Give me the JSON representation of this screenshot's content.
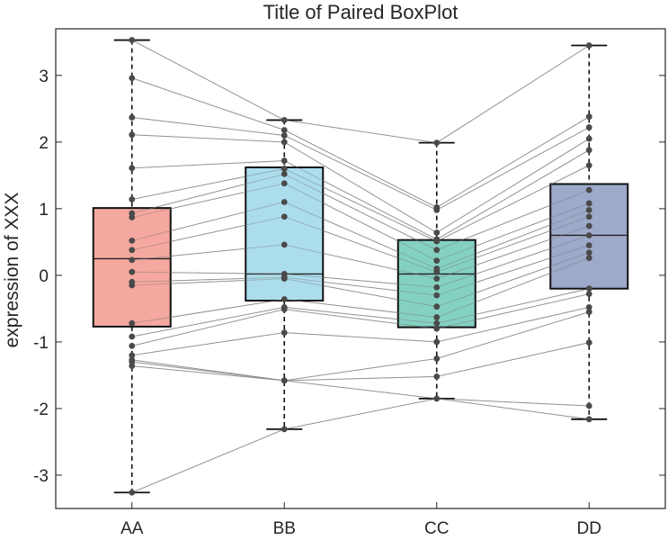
{
  "chart_data": {
    "type": "boxplot",
    "title": "Title of Paired BoxPlot",
    "xlabel": "",
    "ylabel": "expression of XXX",
    "ylim": [
      -3.5,
      3.7
    ],
    "yticks": [
      -3,
      -2,
      -1,
      0,
      1,
      2,
      3
    ],
    "ytick_labels": [
      "-3",
      "-2",
      "-1",
      "0",
      "1",
      "2",
      "3"
    ],
    "grid": false,
    "categories": [
      "AA",
      "BB",
      "CC",
      "DD"
    ],
    "colors": [
      "#F4A39A",
      "#A8DBEC",
      "#7ECFBE",
      "#98A5C7"
    ],
    "boxes": [
      {
        "category": "AA",
        "whisker_low": -3.26,
        "q1": -0.77,
        "median": 0.25,
        "q3": 1.01,
        "whisker_high": 3.53
      },
      {
        "category": "BB",
        "whisker_low": -2.31,
        "q1": -0.38,
        "median": 0.02,
        "q3": 1.62,
        "whisker_high": 2.33
      },
      {
        "category": "CC",
        "whisker_low": -1.85,
        "q1": -0.78,
        "median": 0.02,
        "q3": 0.53,
        "whisker_high": 1.99
      },
      {
        "category": "DD",
        "whisker_low": -2.16,
        "q1": -0.2,
        "median": 0.6,
        "q3": 1.37,
        "whisker_high": 3.45
      }
    ],
    "paired_points": [
      [
        3.53,
        2.33,
        1.99,
        3.45
      ],
      [
        2.96,
        2.18,
        1.02,
        2.38
      ],
      [
        2.37,
        2.1,
        0.98,
        2.22
      ],
      [
        2.11,
        2.0,
        0.64,
        2.05
      ],
      [
        1.61,
        1.72,
        0.54,
        1.88
      ],
      [
        1.14,
        1.6,
        0.51,
        1.65
      ],
      [
        0.93,
        1.52,
        0.38,
        1.28
      ],
      [
        0.87,
        1.38,
        0.22,
        1.08
      ],
      [
        0.52,
        1.1,
        0.1,
        0.98
      ],
      [
        0.38,
        0.88,
        0.05,
        0.88
      ],
      [
        0.23,
        0.46,
        -0.05,
        0.74
      ],
      [
        0.05,
        0.02,
        -0.18,
        0.6
      ],
      [
        -0.1,
        -0.03,
        -0.3,
        0.45
      ],
      [
        -0.15,
        -0.05,
        -0.47,
        0.34
      ],
      [
        -0.72,
        -0.36,
        -0.63,
        0.26
      ],
      [
        -0.92,
        -0.48,
        -0.72,
        -0.2
      ],
      [
        -1.06,
        -0.51,
        -0.8,
        -0.28
      ],
      [
        -1.2,
        -0.86,
        -1.0,
        -0.48
      ],
      [
        -1.3,
        -1.58,
        -1.25,
        -0.55
      ],
      [
        -1.36,
        -1.58,
        -1.52,
        -1.01
      ],
      [
        -3.26,
        -2.31,
        -1.85,
        -1.96
      ],
      [
        -1.27,
        -1.58,
        -1.85,
        -2.16
      ]
    ]
  }
}
